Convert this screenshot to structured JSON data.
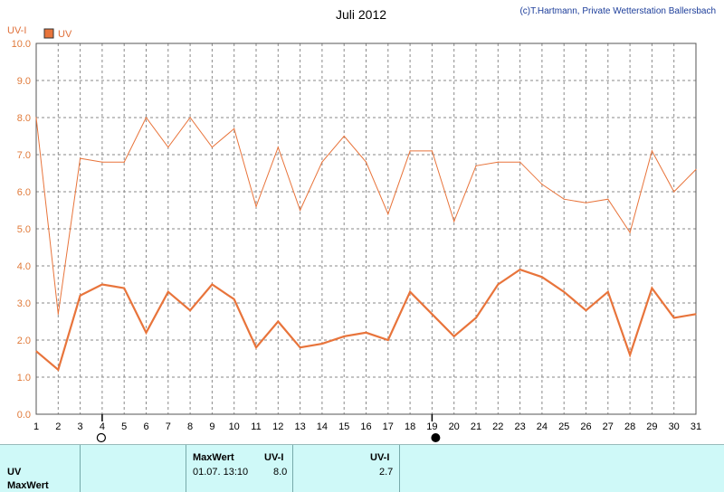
{
  "header": {
    "title": "Juli 2012",
    "credit": "(c)T.Hartmann, Private Wetterstation Ballersbach",
    "unit": "UV-I",
    "legend_label": "UV"
  },
  "colors": {
    "series": "#e8743b",
    "legend_box": "#e8743b"
  },
  "moon_phase_icons": [
    {
      "day": 4,
      "icon": "full-moon-icon"
    },
    {
      "day": 19,
      "icon": "new-moon-icon"
    }
  ],
  "chart_data": {
    "type": "line",
    "title": "Juli 2012",
    "ylabel": "UV-I",
    "xlabel": "",
    "ylim": [
      0,
      10
    ],
    "yticks": [
      "0.0",
      "1.0",
      "2.0",
      "3.0",
      "4.0",
      "5.0",
      "6.0",
      "7.0",
      "8.0",
      "9.0",
      "10.0"
    ],
    "xticks": [
      1,
      2,
      3,
      4,
      5,
      6,
      7,
      8,
      9,
      10,
      11,
      12,
      13,
      14,
      15,
      16,
      17,
      18,
      19,
      20,
      21,
      22,
      23,
      24,
      25,
      26,
      27,
      28,
      29,
      30,
      31
    ],
    "grid": true,
    "legend": "top-left",
    "series": [
      {
        "name": "UV",
        "style": "thick",
        "x": [
          1,
          2,
          3,
          4,
          5,
          6,
          7,
          8,
          9,
          10,
          11,
          12,
          13,
          14,
          15,
          16,
          17,
          18,
          19,
          20,
          21,
          22,
          23,
          24,
          25,
          26,
          27,
          28,
          29,
          30,
          31
        ],
        "values": [
          1.7,
          1.2,
          3.2,
          3.5,
          3.4,
          2.2,
          3.3,
          2.8,
          3.5,
          3.1,
          1.8,
          2.5,
          1.8,
          1.9,
          2.1,
          2.2,
          2.0,
          3.3,
          2.7,
          2.1,
          2.6,
          3.5,
          3.9,
          3.7,
          3.3,
          2.8,
          3.3,
          1.6,
          3.4,
          2.6,
          2.7
        ]
      },
      {
        "style": "thin",
        "x": [
          1,
          2,
          3,
          4,
          5,
          6,
          7,
          8,
          9,
          10,
          11,
          12,
          13,
          14,
          15,
          16,
          17,
          18,
          19,
          20,
          21,
          22,
          23,
          24,
          25,
          26,
          27,
          28,
          29,
          30,
          31
        ],
        "values": [
          8.0,
          2.7,
          6.9,
          6.8,
          6.8,
          8.0,
          7.2,
          8.0,
          7.2,
          7.7,
          5.6,
          7.2,
          5.5,
          6.8,
          7.5,
          6.8,
          5.4,
          7.1,
          7.1,
          5.2,
          6.7,
          6.8,
          6.8,
          6.2,
          5.8,
          5.7,
          5.8,
          4.9,
          7.1,
          6.0,
          6.6
        ]
      }
    ]
  },
  "info_panel": {
    "row_label_uv": "UV",
    "row_label_max": "MaxWert",
    "maxwert_header": "MaxWert",
    "uvi_header_1": "UV-I",
    "max_datetime": "01.07.  13:10",
    "max_value": "8.0",
    "uvi_header_2": "UV-I",
    "avg_value": "2.7"
  }
}
